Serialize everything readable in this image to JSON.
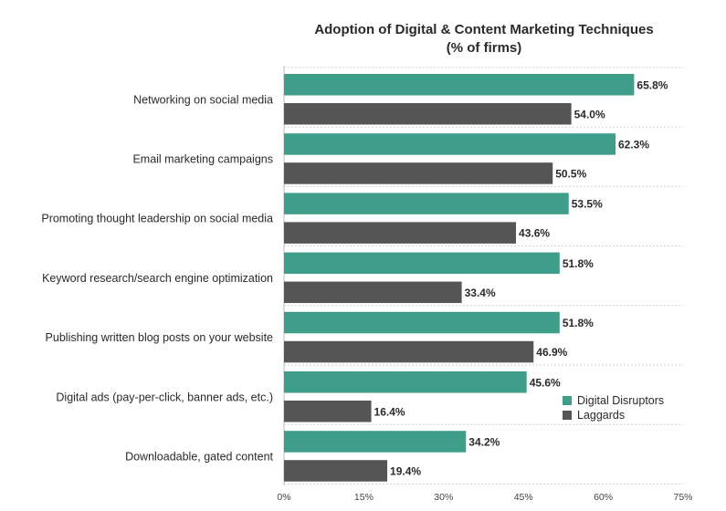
{
  "chart_data": {
    "type": "bar",
    "orientation": "horizontal",
    "title": "Adoption of Digital & Content Marketing Techniques",
    "subtitle": "(% of firms)",
    "xlabel": "",
    "ylabel": "",
    "xlim": [
      0,
      75
    ],
    "ticks": [
      "0%",
      "15%",
      "30%",
      "45%",
      "60%",
      "75%"
    ],
    "tick_values": [
      0,
      15,
      30,
      45,
      60,
      75
    ],
    "grid": true,
    "legend_position": "lower-right",
    "categories": [
      "Networking on social media",
      "Email marketing campaigns",
      "Promoting thought leadership on social media",
      "Keyword research/search engine optimization",
      "Publishing written blog posts on your website",
      "Digital ads (pay-per-click, banner ads, etc.)",
      "Downloadable, gated content"
    ],
    "series": [
      {
        "name": "Digital Disruptors",
        "color": "#3f9e8a",
        "values": [
          65.8,
          62.3,
          53.5,
          51.8,
          51.8,
          45.6,
          34.2
        ],
        "labels": [
          "65.8%",
          "62.3%",
          "53.5%",
          "51.8%",
          "51.8%",
          "45.6%",
          "34.2%"
        ]
      },
      {
        "name": "Laggards",
        "color": "#555555",
        "values": [
          54.0,
          50.5,
          43.6,
          33.4,
          46.9,
          16.4,
          19.4
        ],
        "labels": [
          "54.0%",
          "50.5%",
          "43.6%",
          "33.4%",
          "46.9%",
          "16.4%",
          "19.4%"
        ]
      }
    ]
  }
}
